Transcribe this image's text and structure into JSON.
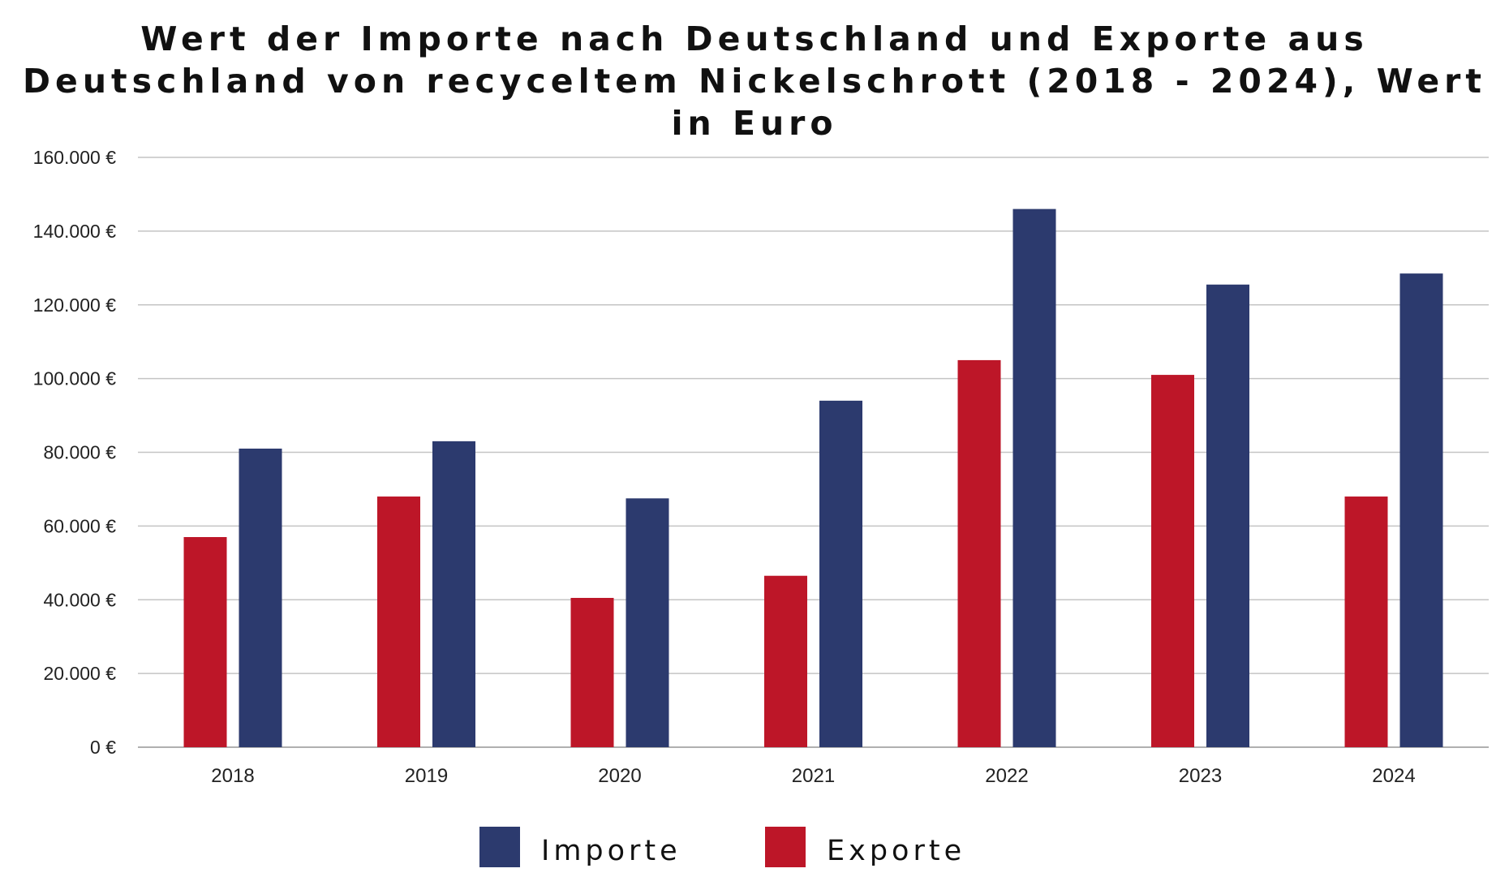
{
  "chart_data": {
    "type": "bar",
    "title": "Wert der Importe nach Deutschland und Exporte aus Deutschland von recyceltem Nickelschrott (2018 - 2024), Wert in Euro",
    "xlabel": "",
    "ylabel": "",
    "categories": [
      "2018",
      "2019",
      "2020",
      "2021",
      "2022",
      "2023",
      "2024"
    ],
    "series": [
      {
        "name": "Exporte",
        "color": "#bd1628",
        "values": [
          57000,
          68000,
          40500,
          46500,
          105000,
          101000,
          68000
        ]
      },
      {
        "name": "Importe",
        "color": "#2c3a6e",
        "values": [
          81000,
          83000,
          67500,
          94000,
          146000,
          125500,
          128500
        ]
      }
    ],
    "ylim": [
      0,
      160000
    ],
    "yticks": [
      0,
      20000,
      40000,
      60000,
      80000,
      100000,
      120000,
      140000,
      160000
    ],
    "ytick_labels": [
      "0 €",
      "20.000 €",
      "40.000 €",
      "60.000 €",
      "80.000 €",
      "100.000 €",
      "120.000 €",
      "140.000 €",
      "160.000 €"
    ],
    "grid": true,
    "legend_position": "bottom-center",
    "legend": [
      {
        "name": "Importe",
        "color": "#2c3a6e"
      },
      {
        "name": "Exporte",
        "color": "#bd1628"
      }
    ]
  }
}
